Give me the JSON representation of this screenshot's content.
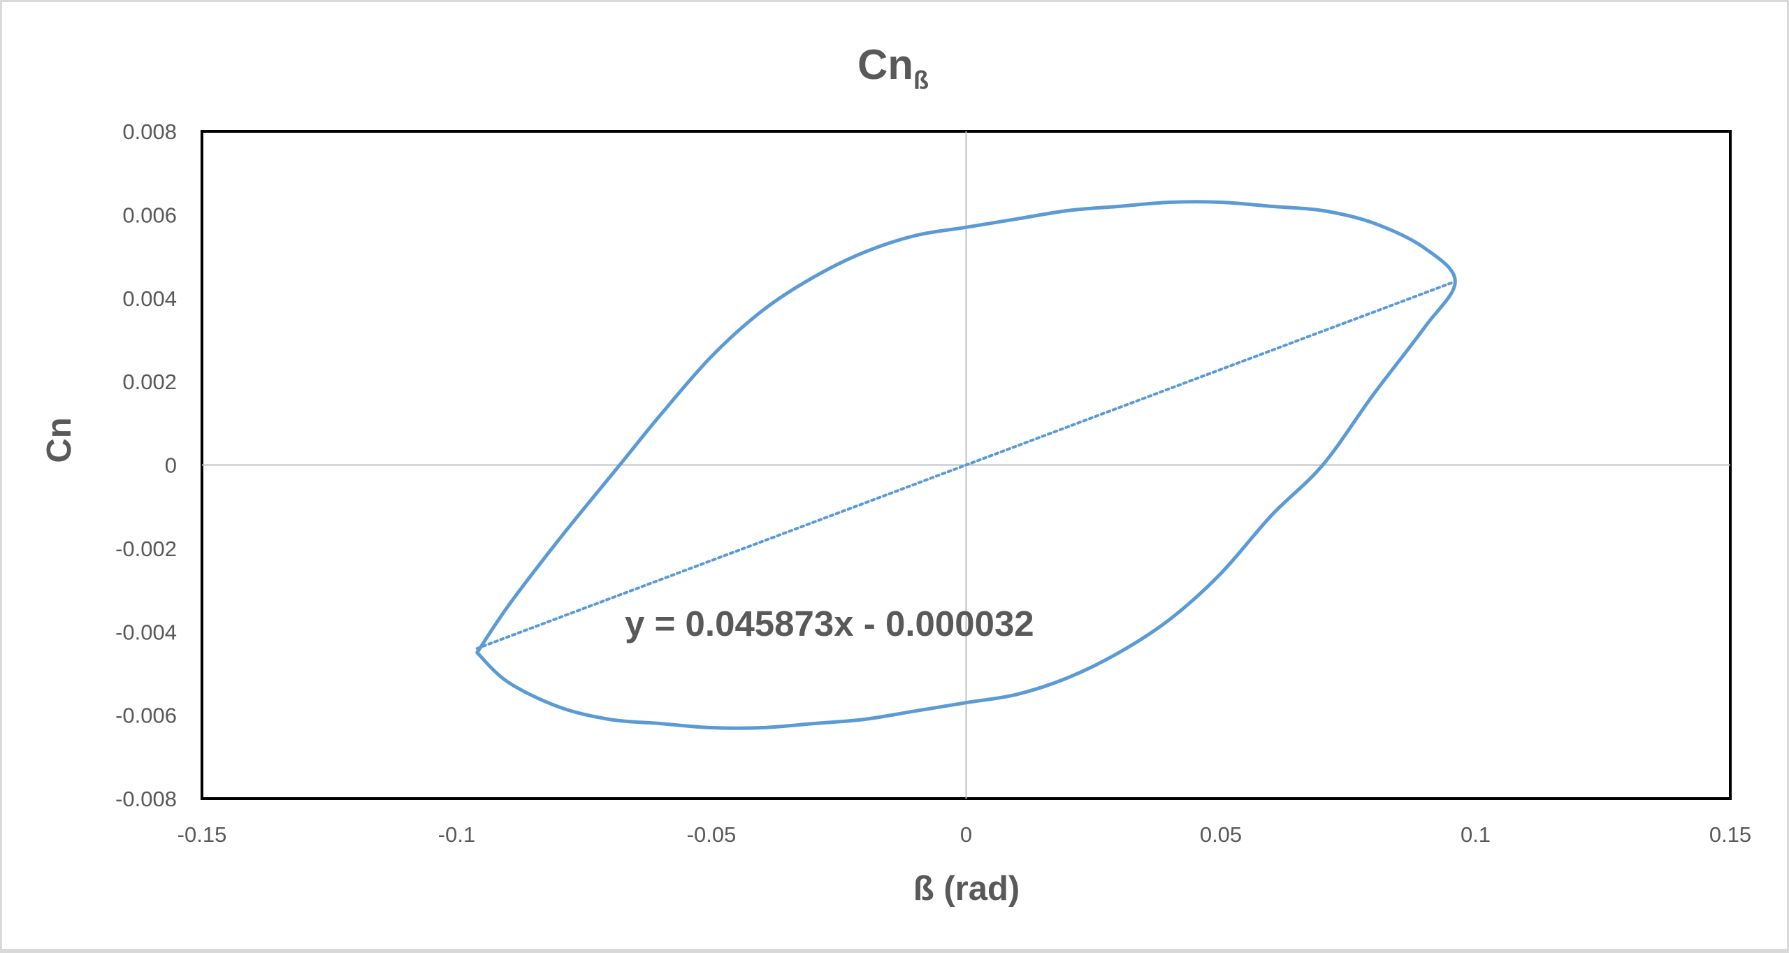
{
  "chart_data": {
    "type": "scatter",
    "title": "Cn",
    "title_subscript": "ß",
    "xlabel": "ß (rad)",
    "ylabel": "Cn",
    "xlim": [
      -0.15,
      0.15
    ],
    "ylim": [
      -0.008,
      0.008
    ],
    "x_ticks": [
      -0.15,
      -0.1,
      -0.05,
      0,
      0.05,
      0.1,
      0.15
    ],
    "x_tick_labels": [
      "-0.15",
      "-0.1",
      "-0.05",
      "0",
      "0.05",
      "0.1",
      "0.15"
    ],
    "y_ticks": [
      0.008,
      0.006,
      0.004,
      0.002,
      0,
      -0.002,
      -0.004,
      -0.006,
      -0.008
    ],
    "y_tick_labels": [
      "0.008",
      "0.006",
      "0.004",
      "0.002",
      "0",
      "-0.002",
      "-0.004",
      "-0.006",
      "-0.008"
    ],
    "grid": "axes-only",
    "legend": "none",
    "series": [
      {
        "color": "#5b9bd5",
        "style": "solid",
        "x": [
          -0.096,
          -0.09,
          -0.08,
          -0.068,
          -0.06,
          -0.05,
          -0.04,
          -0.03,
          -0.02,
          -0.01,
          0,
          0.01,
          0.02,
          0.03,
          0.04,
          0.05,
          0.06,
          0.07,
          0.08,
          0.09,
          0.096,
          0.09,
          0.08,
          0.07,
          0.06,
          0.05,
          0.04,
          0.03,
          0.02,
          0.01,
          0,
          -0.01,
          -0.02,
          -0.03,
          -0.04,
          -0.05,
          -0.06,
          -0.07,
          -0.08,
          -0.09,
          -0.096
        ],
        "y": [
          -0.0045,
          -0.0034,
          -0.0018,
          0.0,
          0.0012,
          0.0026,
          0.0037,
          0.0045,
          0.0051,
          0.0055,
          0.0057,
          0.0059,
          0.0061,
          0.0062,
          0.0063,
          0.0063,
          0.0062,
          0.0061,
          0.0058,
          0.0052,
          0.0044,
          0.0033,
          0.0017,
          0.0,
          -0.0012,
          -0.0026,
          -0.0037,
          -0.0045,
          -0.0051,
          -0.0055,
          -0.0057,
          -0.0059,
          -0.0061,
          -0.0062,
          -0.0063,
          -0.0063,
          -0.0062,
          -0.0061,
          -0.0058,
          -0.0052,
          -0.0045
        ]
      },
      {
        "color": "#5b9bd5",
        "style": "dotted",
        "x": [
          -0.096,
          0.096
        ],
        "y": [
          -0.0044,
          0.0044
        ]
      }
    ],
    "annotations": [
      {
        "text": "y = 0.045873x - 0.000032",
        "x": -0.067,
        "y": -0.0041
      }
    ]
  }
}
